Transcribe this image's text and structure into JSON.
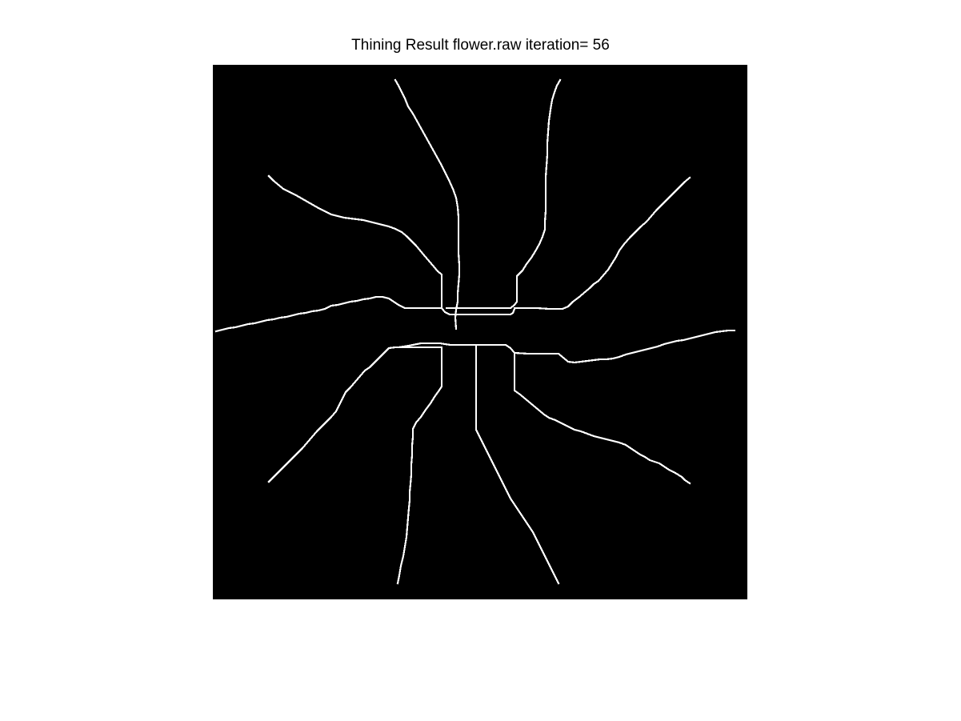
{
  "figure": {
    "title": "Thining Result flower.raw iteration= 56",
    "background_color": "#ffffff"
  },
  "image": {
    "background_color": "#000000",
    "stroke_color": "#ffffff"
  }
}
